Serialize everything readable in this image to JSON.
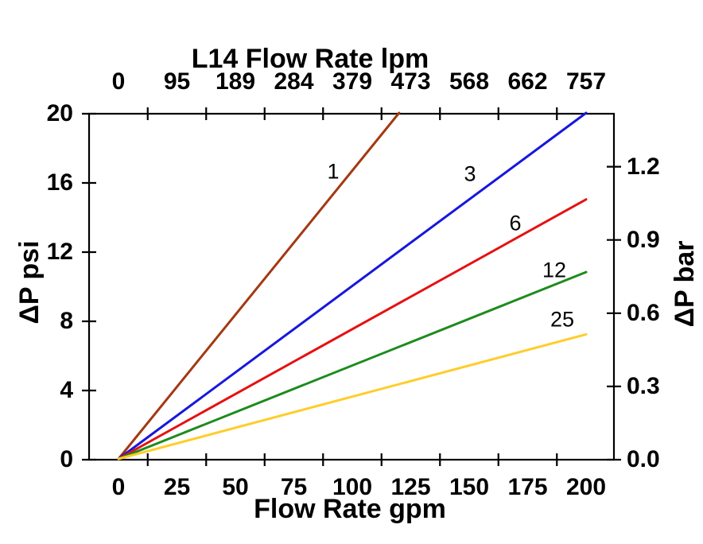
{
  "chart_data": {
    "type": "line",
    "title": "L14 Flow Rate lpm",
    "background": "#FFFFFF",
    "axis_color": "#000000",
    "axes": {
      "top": {
        "title": "L14 Flow Rate lpm",
        "unit": "lpm",
        "labels": [
          "0",
          "95",
          "189",
          "284",
          "379",
          "473",
          "568",
          "662",
          "757"
        ],
        "at_gpm": [
          0,
          25,
          50,
          75,
          100,
          125,
          150,
          175,
          200
        ],
        "tick_marks_gpm": [
          12.5,
          37.5,
          62.5,
          87.5,
          112.5,
          137.5,
          162.5,
          187.5
        ]
      },
      "bottom": {
        "title": "Flow Rate gpm",
        "unit": "gpm",
        "labels": [
          "0",
          "25",
          "50",
          "75",
          "100",
          "125",
          "150",
          "175",
          "200"
        ],
        "label_values": [
          0,
          25,
          50,
          75,
          100,
          125,
          150,
          175,
          200
        ],
        "tick_marks_gpm": [
          12.5,
          37.5,
          62.5,
          87.5,
          112.5,
          137.5,
          162.5,
          187.5
        ],
        "range_gpm": [
          -12.5,
          212.5
        ]
      },
      "left": {
        "title": "ΔP psi",
        "unit": "psi",
        "labels": [
          "20",
          "16",
          "12",
          "8",
          "4",
          "0"
        ],
        "label_values": [
          20,
          16,
          12,
          8,
          4,
          0
        ],
        "range_psi": [
          0,
          20
        ]
      },
      "right": {
        "title": "ΔP bar",
        "unit": "bar",
        "labels": [
          "1.2",
          "0.9",
          "0.6",
          "0.3",
          "0.0"
        ],
        "label_values": [
          1.2,
          0.9,
          0.6,
          0.3,
          0.0
        ]
      }
    },
    "series": [
      {
        "label": "1",
        "color": "#A33912",
        "points_gpm_psi": [
          [
            0,
            0
          ],
          [
            120,
            20
          ]
        ],
        "slope_psi_per_gpm": 0.1667
      },
      {
        "label": "3",
        "color": "#1717DD",
        "points_gpm_psi": [
          [
            0,
            0
          ],
          [
            200,
            20
          ]
        ],
        "slope_psi_per_gpm": 0.1
      },
      {
        "label": "6",
        "color": "#E51111",
        "points_gpm_psi": [
          [
            0,
            0
          ],
          [
            200,
            15
          ]
        ],
        "slope_psi_per_gpm": 0.075
      },
      {
        "label": "12",
        "color": "#1E8B1E",
        "points_gpm_psi": [
          [
            0,
            0
          ],
          [
            200,
            10.8
          ]
        ],
        "slope_psi_per_gpm": 0.054
      },
      {
        "label": "25",
        "color": "#FFCD2A",
        "points_gpm_psi": [
          [
            0,
            0
          ],
          [
            200,
            7.2
          ]
        ],
        "slope_psi_per_gpm": 0.036
      }
    ]
  }
}
